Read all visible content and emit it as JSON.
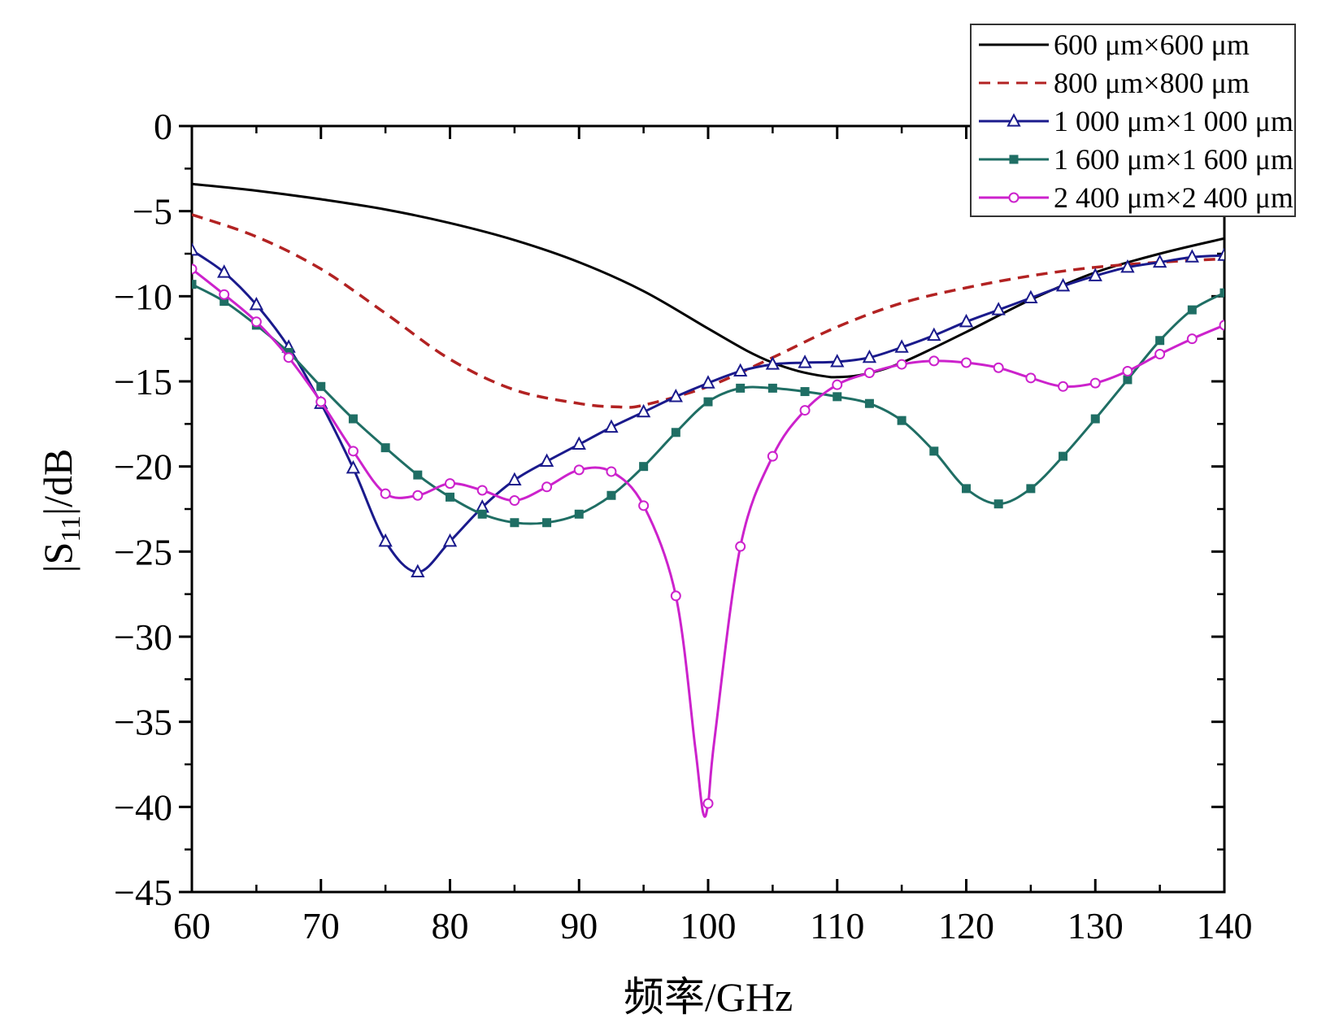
{
  "chart_data": {
    "type": "line",
    "xlabel": "频率/GHz",
    "ylabel_prefix": "|S",
    "ylabel_sub": "11",
    "ylabel_suffix": "|/dB",
    "xlim": [
      60,
      140
    ],
    "ylim": [
      -45,
      0
    ],
    "xticks": [
      60,
      70,
      80,
      90,
      100,
      110,
      120,
      130,
      140
    ],
    "yticks": [
      0,
      -5,
      -10,
      -15,
      -20,
      -25,
      -30,
      -35,
      -40,
      -45
    ],
    "xtick_labels": [
      "60",
      "70",
      "80",
      "90",
      "100",
      "110",
      "120",
      "130",
      "140"
    ],
    "ytick_labels": [
      "0",
      "−5",
      "−10",
      "−15",
      "−20",
      "−25",
      "−30",
      "−35",
      "−40",
      "−45"
    ],
    "grid": false,
    "legend_position": "top-right",
    "series": [
      {
        "name": "600 μm×600 μm",
        "color": "#000000",
        "dash": "solid",
        "marker": "none",
        "x": [
          60,
          65,
          70,
          75,
          80,
          85,
          90,
          95,
          100,
          103,
          105,
          107,
          109,
          110,
          112,
          115,
          120,
          125,
          130,
          135,
          140
        ],
        "y": [
          -3.4,
          -3.8,
          -4.3,
          -4.9,
          -5.7,
          -6.7,
          -8.0,
          -9.7,
          -11.9,
          -13.2,
          -13.9,
          -14.4,
          -14.7,
          -14.75,
          -14.6,
          -13.9,
          -12.1,
          -10.2,
          -8.6,
          -7.5,
          -6.6
        ]
      },
      {
        "name": "800 μm×800 μm",
        "color": "#b22222",
        "dash": "dashed",
        "marker": "none",
        "x": [
          60,
          65,
          70,
          75,
          80,
          85,
          90,
          93,
          95,
          100,
          105,
          110,
          115,
          120,
          125,
          130,
          135,
          140
        ],
        "y": [
          -5.2,
          -6.5,
          -8.4,
          -11.0,
          -13.7,
          -15.5,
          -16.3,
          -16.5,
          -16.4,
          -15.3,
          -13.6,
          -11.8,
          -10.4,
          -9.5,
          -8.8,
          -8.3,
          -8.0,
          -7.8
        ]
      },
      {
        "name": "1 000 μm×1 000 μm",
        "color": "#1a1a8c",
        "dash": "solid",
        "marker": "triangle",
        "x": [
          60,
          62.5,
          65,
          67.5,
          70,
          72.5,
          75,
          77.5,
          80,
          82.5,
          85,
          87.5,
          90,
          92.5,
          95,
          97.5,
          100,
          102.5,
          105,
          107.5,
          110,
          112.5,
          115,
          117.5,
          120,
          122.5,
          125,
          127.5,
          130,
          132.5,
          135,
          137.5,
          140
        ],
        "y": [
          -7.3,
          -8.6,
          -10.5,
          -13.0,
          -16.3,
          -20.1,
          -24.4,
          -26.2,
          -24.4,
          -22.4,
          -20.8,
          -19.7,
          -18.7,
          -17.7,
          -16.8,
          -15.9,
          -15.1,
          -14.4,
          -14.0,
          -13.9,
          -13.85,
          -13.6,
          -13.0,
          -12.3,
          -11.5,
          -10.8,
          -10.1,
          -9.4,
          -8.8,
          -8.3,
          -8.0,
          -7.7,
          -7.6
        ]
      },
      {
        "name": "1 600 μm×1 600 μm",
        "color": "#1f6e64",
        "dash": "solid",
        "marker": "square",
        "x": [
          60,
          62.5,
          65,
          67.5,
          70,
          72.5,
          75,
          77.5,
          80,
          82.5,
          85,
          87.5,
          90,
          92.5,
          95,
          97.5,
          100,
          102.5,
          105,
          107.5,
          110,
          112.5,
          115,
          117.5,
          120,
          122.5,
          125,
          127.5,
          130,
          132.5,
          135,
          137.5,
          140
        ],
        "y": [
          -9.3,
          -10.3,
          -11.7,
          -13.3,
          -15.3,
          -17.2,
          -18.9,
          -20.5,
          -21.8,
          -22.8,
          -23.3,
          -23.3,
          -22.8,
          -21.7,
          -20.0,
          -18.0,
          -16.2,
          -15.4,
          -15.4,
          -15.6,
          -15.9,
          -16.3,
          -17.3,
          -19.1,
          -21.3,
          -22.2,
          -21.3,
          -19.4,
          -17.2,
          -14.9,
          -12.6,
          -10.8,
          -9.8
        ]
      },
      {
        "name": "2 400 μm×2 400 μm",
        "color": "#cc22cc",
        "dash": "solid",
        "marker": "circle",
        "x": [
          60,
          62.5,
          65,
          67.5,
          70,
          72.5,
          75,
          77.5,
          80,
          82.5,
          85,
          87.5,
          90,
          92.5,
          95,
          97.5,
          99,
          99.6,
          100,
          100.5,
          102.5,
          105,
          107.5,
          110,
          112.5,
          115,
          117.5,
          120,
          122.5,
          125,
          127.5,
          130,
          132.5,
          135,
          137.5,
          140
        ],
        "y": [
          -8.4,
          -9.9,
          -11.5,
          -13.6,
          -16.2,
          -19.1,
          -21.6,
          -21.7,
          -21.0,
          -21.4,
          -22.0,
          -21.2,
          -20.2,
          -20.3,
          -22.3,
          -27.6,
          -36.5,
          -40.3,
          -39.8,
          -36.0,
          -24.7,
          -19.4,
          -16.7,
          -15.2,
          -14.5,
          -14.0,
          -13.8,
          -13.9,
          -14.2,
          -14.8,
          -15.3,
          -15.1,
          -14.4,
          -13.4,
          -12.5,
          -11.7
        ]
      }
    ]
  }
}
